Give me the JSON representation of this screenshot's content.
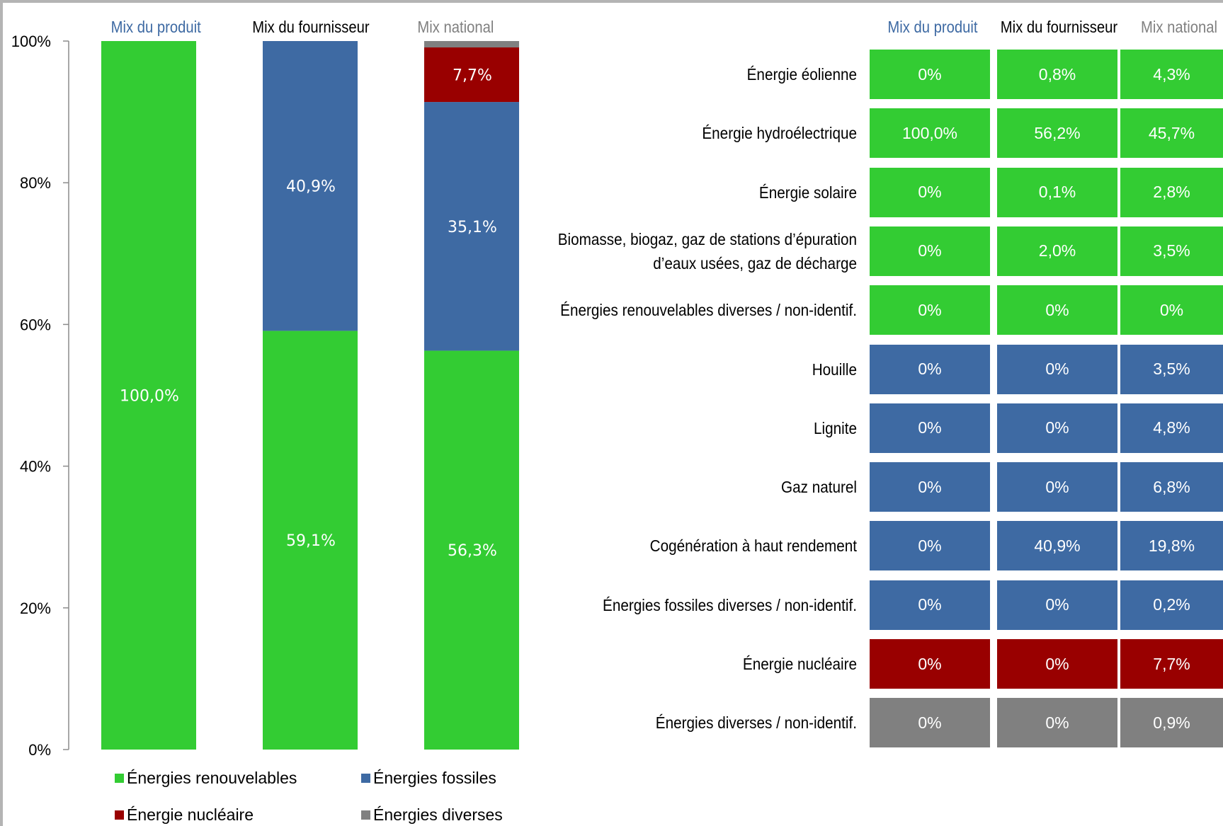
{
  "colors": {
    "renewable": "#33cc33",
    "fossil": "#3e6aa3",
    "nuclear": "#990000",
    "other": "#808080",
    "product_header": "#3e6aa3",
    "supplier_header": "#000000",
    "national_header": "#808080"
  },
  "chart_data": {
    "type": "bar",
    "stacked": true,
    "categories": [
      "Mix du produit",
      "Mix du fournisseur",
      "Mix national"
    ],
    "ylim": [
      0,
      100
    ],
    "y_ticks": [
      "0%",
      "20%",
      "40%",
      "60%",
      "80%",
      "100%"
    ],
    "series": [
      {
        "name": "Énergies renouvelables",
        "color": "#33cc33",
        "values": [
          100.0,
          59.1,
          56.3
        ],
        "labels": [
          "100,0%",
          "59,1%",
          "56,3%"
        ]
      },
      {
        "name": "Énergies fossiles",
        "color": "#3e6aa3",
        "values": [
          0,
          40.9,
          35.1
        ],
        "labels": [
          "",
          "40,9%",
          "35,1%"
        ]
      },
      {
        "name": "Énergie nucléaire",
        "color": "#990000",
        "values": [
          0,
          0,
          7.7
        ],
        "labels": [
          "",
          "",
          "7,7%"
        ]
      },
      {
        "name": "Énergies diverses",
        "color": "#808080",
        "values": [
          0,
          0,
          0.9
        ],
        "labels": [
          "",
          "",
          ""
        ]
      }
    ],
    "legend_position": "bottom"
  },
  "table": {
    "headers": [
      "Mix du produit",
      "Mix du fournisseur",
      "Mix national"
    ],
    "rows": [
      {
        "label": "Énergie éolienne",
        "group": "renewable",
        "values": [
          "0%",
          "0,8%",
          "4,3%"
        ]
      },
      {
        "label": "Énergie hydroélectrique",
        "group": "renewable",
        "values": [
          "100,0%",
          "56,2%",
          "45,7%"
        ]
      },
      {
        "label": "Énergie solaire",
        "group": "renewable",
        "values": [
          "0%",
          "0,1%",
          "2,8%"
        ]
      },
      {
        "label": "Biomasse, biogaz, gaz de stations d’épuration",
        "label2": "d’eaux usées, gaz de décharge",
        "group": "renewable",
        "values": [
          "0%",
          "2,0%",
          "3,5%"
        ]
      },
      {
        "label": "Énergies renouvelables diverses / non-identif.",
        "group": "renewable",
        "values": [
          "0%",
          "0%",
          "0%"
        ]
      },
      {
        "label": "Houille",
        "group": "fossil",
        "values": [
          "0%",
          "0%",
          "3,5%"
        ]
      },
      {
        "label": "Lignite",
        "group": "fossil",
        "values": [
          "0%",
          "0%",
          "4,8%"
        ]
      },
      {
        "label": "Gaz naturel",
        "group": "fossil",
        "values": [
          "0%",
          "0%",
          "6,8%"
        ]
      },
      {
        "label": "Cogénération à haut rendement",
        "group": "fossil",
        "values": [
          "0%",
          "40,9%",
          "19,8%"
        ]
      },
      {
        "label": "Énergies fossiles diverses / non-identif.",
        "group": "fossil",
        "values": [
          "0%",
          "0%",
          "0,2%"
        ]
      },
      {
        "label": "Énergie nucléaire",
        "group": "nuclear",
        "values": [
          "0%",
          "0%",
          "7,7%"
        ]
      },
      {
        "label": "Énergies diverses / non-identif.",
        "group": "other",
        "values": [
          "0%",
          "0%",
          "0,9%"
        ]
      }
    ]
  }
}
